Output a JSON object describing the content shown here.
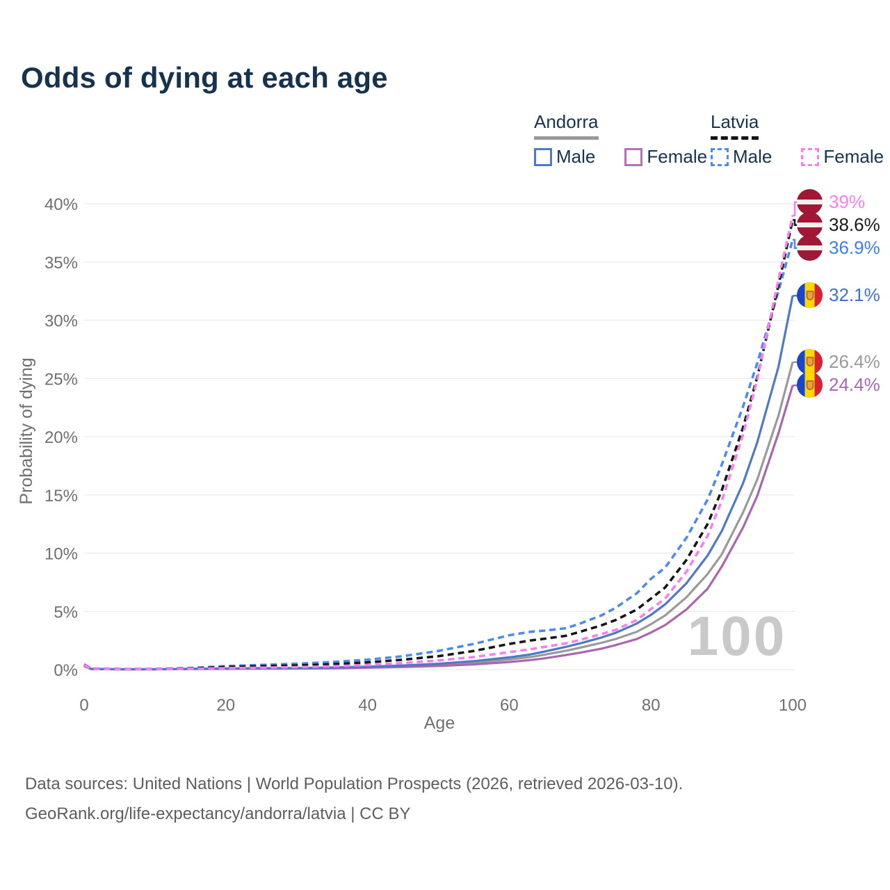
{
  "title": "Odds of dying at each age",
  "watermark": "100",
  "legend": {
    "groups": [
      {
        "country": "Andorra",
        "line_style": "solid",
        "items": [
          {
            "label": "Male",
            "color": "#4e79c4"
          },
          {
            "label": "Female",
            "color": "#b671b6"
          }
        ]
      },
      {
        "country": "Latvia",
        "line_style": "dashed",
        "items": [
          {
            "label": "Male",
            "color": "#4b8bf0"
          },
          {
            "label": "Female",
            "color": "#f97ef3"
          }
        ]
      }
    ]
  },
  "footer": {
    "line1": "Data sources: United Nations | World Population Prospects (2026, retrieved 2026-03-10).",
    "line2": "GeoRank.org/life-expectancy/andorra/latvia | CC BY"
  },
  "chart_data": {
    "type": "line",
    "title": "Odds of dying at each age",
    "xlabel": "Age",
    "ylabel": "Probability of dying",
    "xlim": [
      0,
      100
    ],
    "ylim": [
      0,
      40
    ],
    "x_ticks": [
      0,
      20,
      40,
      60,
      80,
      100
    ],
    "y_ticks": [
      0,
      5,
      10,
      15,
      20,
      25,
      30,
      35,
      40
    ],
    "y_tick_labels": [
      "0%",
      "5%",
      "10%",
      "15%",
      "20%",
      "25%",
      "30%",
      "35%",
      "40%"
    ],
    "grid": "horizontal",
    "legend_position": "top-right",
    "age_ticker": 100,
    "x": [
      0,
      1,
      5,
      10,
      15,
      20,
      25,
      30,
      35,
      40,
      45,
      50,
      55,
      60,
      63,
      65,
      68,
      70,
      73,
      75,
      78,
      80,
      82,
      85,
      88,
      90,
      93,
      95,
      98,
      100
    ],
    "series": [
      {
        "name": "Andorra both sexes",
        "country": "andorra",
        "color": "#9a9a9a",
        "label_color": "#999999",
        "dash": false,
        "label": "26.4%",
        "end_value": 26.4,
        "values": [
          0.33,
          0.05,
          0.03,
          0.03,
          0.06,
          0.08,
          0.1,
          0.12,
          0.15,
          0.21,
          0.29,
          0.41,
          0.6,
          0.87,
          1.08,
          1.28,
          1.62,
          1.88,
          2.3,
          2.62,
          3.25,
          3.9,
          4.65,
          6.2,
          8.2,
          9.9,
          13.5,
          16.3,
          21.8,
          26.4
        ]
      },
      {
        "name": "Andorra Female",
        "country": "andorra",
        "color": "#a965ae",
        "label_color": "#a868ae",
        "dash": false,
        "label": "24.4%",
        "end_value": 24.4,
        "values": [
          0.3,
          0.04,
          0.02,
          0.02,
          0.04,
          0.06,
          0.08,
          0.09,
          0.11,
          0.16,
          0.22,
          0.31,
          0.45,
          0.65,
          0.82,
          0.97,
          1.25,
          1.45,
          1.8,
          2.1,
          2.62,
          3.18,
          3.82,
          5.15,
          6.95,
          8.85,
          12.2,
          14.9,
          20.3,
          24.4
        ]
      },
      {
        "name": "Andorra Male",
        "country": "andorra",
        "color": "#4e79c4",
        "label_color": "#3f72cf",
        "dash": false,
        "label": "32.1%",
        "end_value": 32.1,
        "values": [
          0.35,
          0.06,
          0.03,
          0.03,
          0.07,
          0.1,
          0.12,
          0.14,
          0.18,
          0.25,
          0.35,
          0.5,
          0.73,
          1.05,
          1.3,
          1.55,
          1.95,
          2.25,
          2.75,
          3.15,
          3.95,
          4.7,
          5.6,
          7.4,
          9.8,
          11.9,
          16.0,
          19.5,
          26.0,
          32.1
        ]
      },
      {
        "name": "Latvia Male",
        "country": "latvia",
        "color": "#4b8bf0",
        "label_color": "#3d7ff0",
        "dash": true,
        "label": "36.9%",
        "end_value": 36.9,
        "values": [
          0.45,
          0.08,
          0.05,
          0.06,
          0.13,
          0.3,
          0.4,
          0.5,
          0.65,
          0.85,
          1.15,
          1.6,
          2.2,
          2.95,
          3.25,
          3.35,
          3.55,
          3.95,
          4.65,
          5.3,
          6.55,
          7.8,
          8.75,
          11.3,
          14.6,
          17.6,
          22.6,
          26.3,
          32.5,
          36.9
        ]
      },
      {
        "name": "Latvia both sexes",
        "country": "latvia",
        "color": "#161616",
        "label_color": "#1a1a1a",
        "dash": true,
        "label": "38.6%",
        "end_value": 38.6,
        "values": [
          0.42,
          0.07,
          0.04,
          0.05,
          0.1,
          0.22,
          0.29,
          0.36,
          0.46,
          0.62,
          0.85,
          1.15,
          1.6,
          2.2,
          2.5,
          2.65,
          2.9,
          3.25,
          3.8,
          4.25,
          5.15,
          6.1,
          7.05,
          9.4,
          12.5,
          15.4,
          20.8,
          25.1,
          33.0,
          38.6
        ]
      },
      {
        "name": "Latvia Female",
        "country": "latvia",
        "color": "#f87ef2",
        "label_color": "#fb7ff3",
        "dash": true,
        "label": "39%",
        "end_value": 39.0,
        "values": [
          0.4,
          0.06,
          0.03,
          0.04,
          0.07,
          0.12,
          0.16,
          0.21,
          0.28,
          0.4,
          0.57,
          0.78,
          1.08,
          1.5,
          1.75,
          1.95,
          2.25,
          2.55,
          3.05,
          3.4,
          4.25,
          5.2,
          6.1,
          8.4,
          11.5,
          14.5,
          20.2,
          24.9,
          33.5,
          39.0
        ]
      }
    ]
  }
}
